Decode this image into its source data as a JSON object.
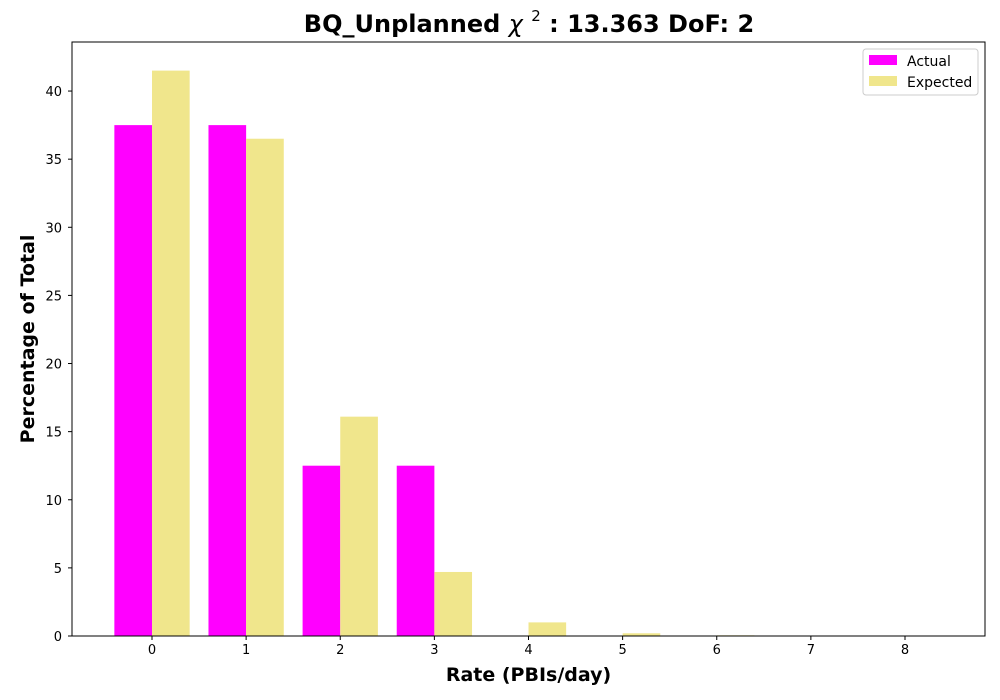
{
  "chart_data": {
    "type": "bar",
    "title": {
      "prefix": "BQ_Unplanned ",
      "symbol": "χ",
      "superscript": "2",
      "suffix": ": 13.363 DoF: 2"
    },
    "xlabel": "Rate (PBIs/day)",
    "ylabel": "Percentage of Total",
    "categories": [
      "0",
      "1",
      "2",
      "3",
      "4",
      "5",
      "6",
      "7",
      "8"
    ],
    "xlim": [
      -0.85,
      8.85
    ],
    "ylim": [
      0,
      43.6
    ],
    "yticks": [
      0,
      5,
      10,
      15,
      20,
      25,
      30,
      35,
      40
    ],
    "grid": false,
    "legend_position": "top-right",
    "series": [
      {
        "name": "Actual",
        "color": "#ff00ff",
        "values": [
          37.5,
          37.5,
          12.5,
          12.5,
          0,
          0,
          0,
          0,
          0
        ]
      },
      {
        "name": "Expected",
        "color": "#f0e68c",
        "values": [
          41.5,
          36.5,
          16.1,
          4.7,
          1.0,
          0.2,
          0.05,
          0,
          0
        ]
      }
    ]
  }
}
